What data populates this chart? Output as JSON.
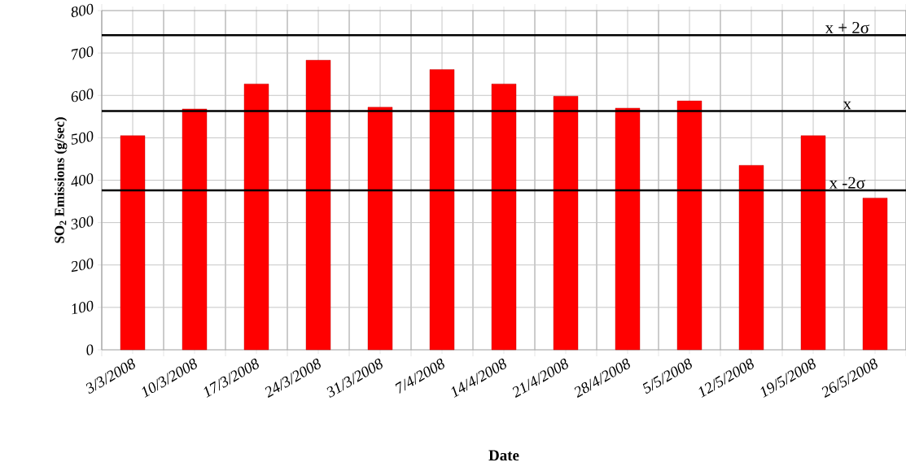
{
  "chart_data": {
    "type": "bar",
    "xlabel": "Date",
    "ylabel": "SO$_{2}$ Emissions (g/sec)",
    "categories": [
      "3/3/2008",
      "10/3/2008",
      "17/3/2008",
      "24/3/2008",
      "31/3/2008",
      "7/4/2008",
      "14/4/2008",
      "21/4/2008",
      "28/4/2008",
      "5/5/2008",
      "12/5/2008",
      "19/5/2008",
      "26/5/2008"
    ],
    "values": [
      505,
      568,
      627,
      683,
      572,
      661,
      627,
      598,
      570,
      587,
      435,
      505,
      358
    ],
    "color": "#ff0000",
    "ylim": [
      0,
      800
    ],
    "yticks": [
      0,
      100,
      200,
      300,
      400,
      500,
      600,
      700,
      800
    ],
    "grid": true,
    "ref_lines": [
      {
        "axis": "y",
        "value": 742,
        "label": "x + 2σ",
        "color": "#000000"
      },
      {
        "axis": "y",
        "value": 563,
        "label": "x",
        "color": "#000000"
      },
      {
        "axis": "y",
        "value": 376,
        "label": "x -2σ",
        "color": "#000000"
      }
    ]
  }
}
